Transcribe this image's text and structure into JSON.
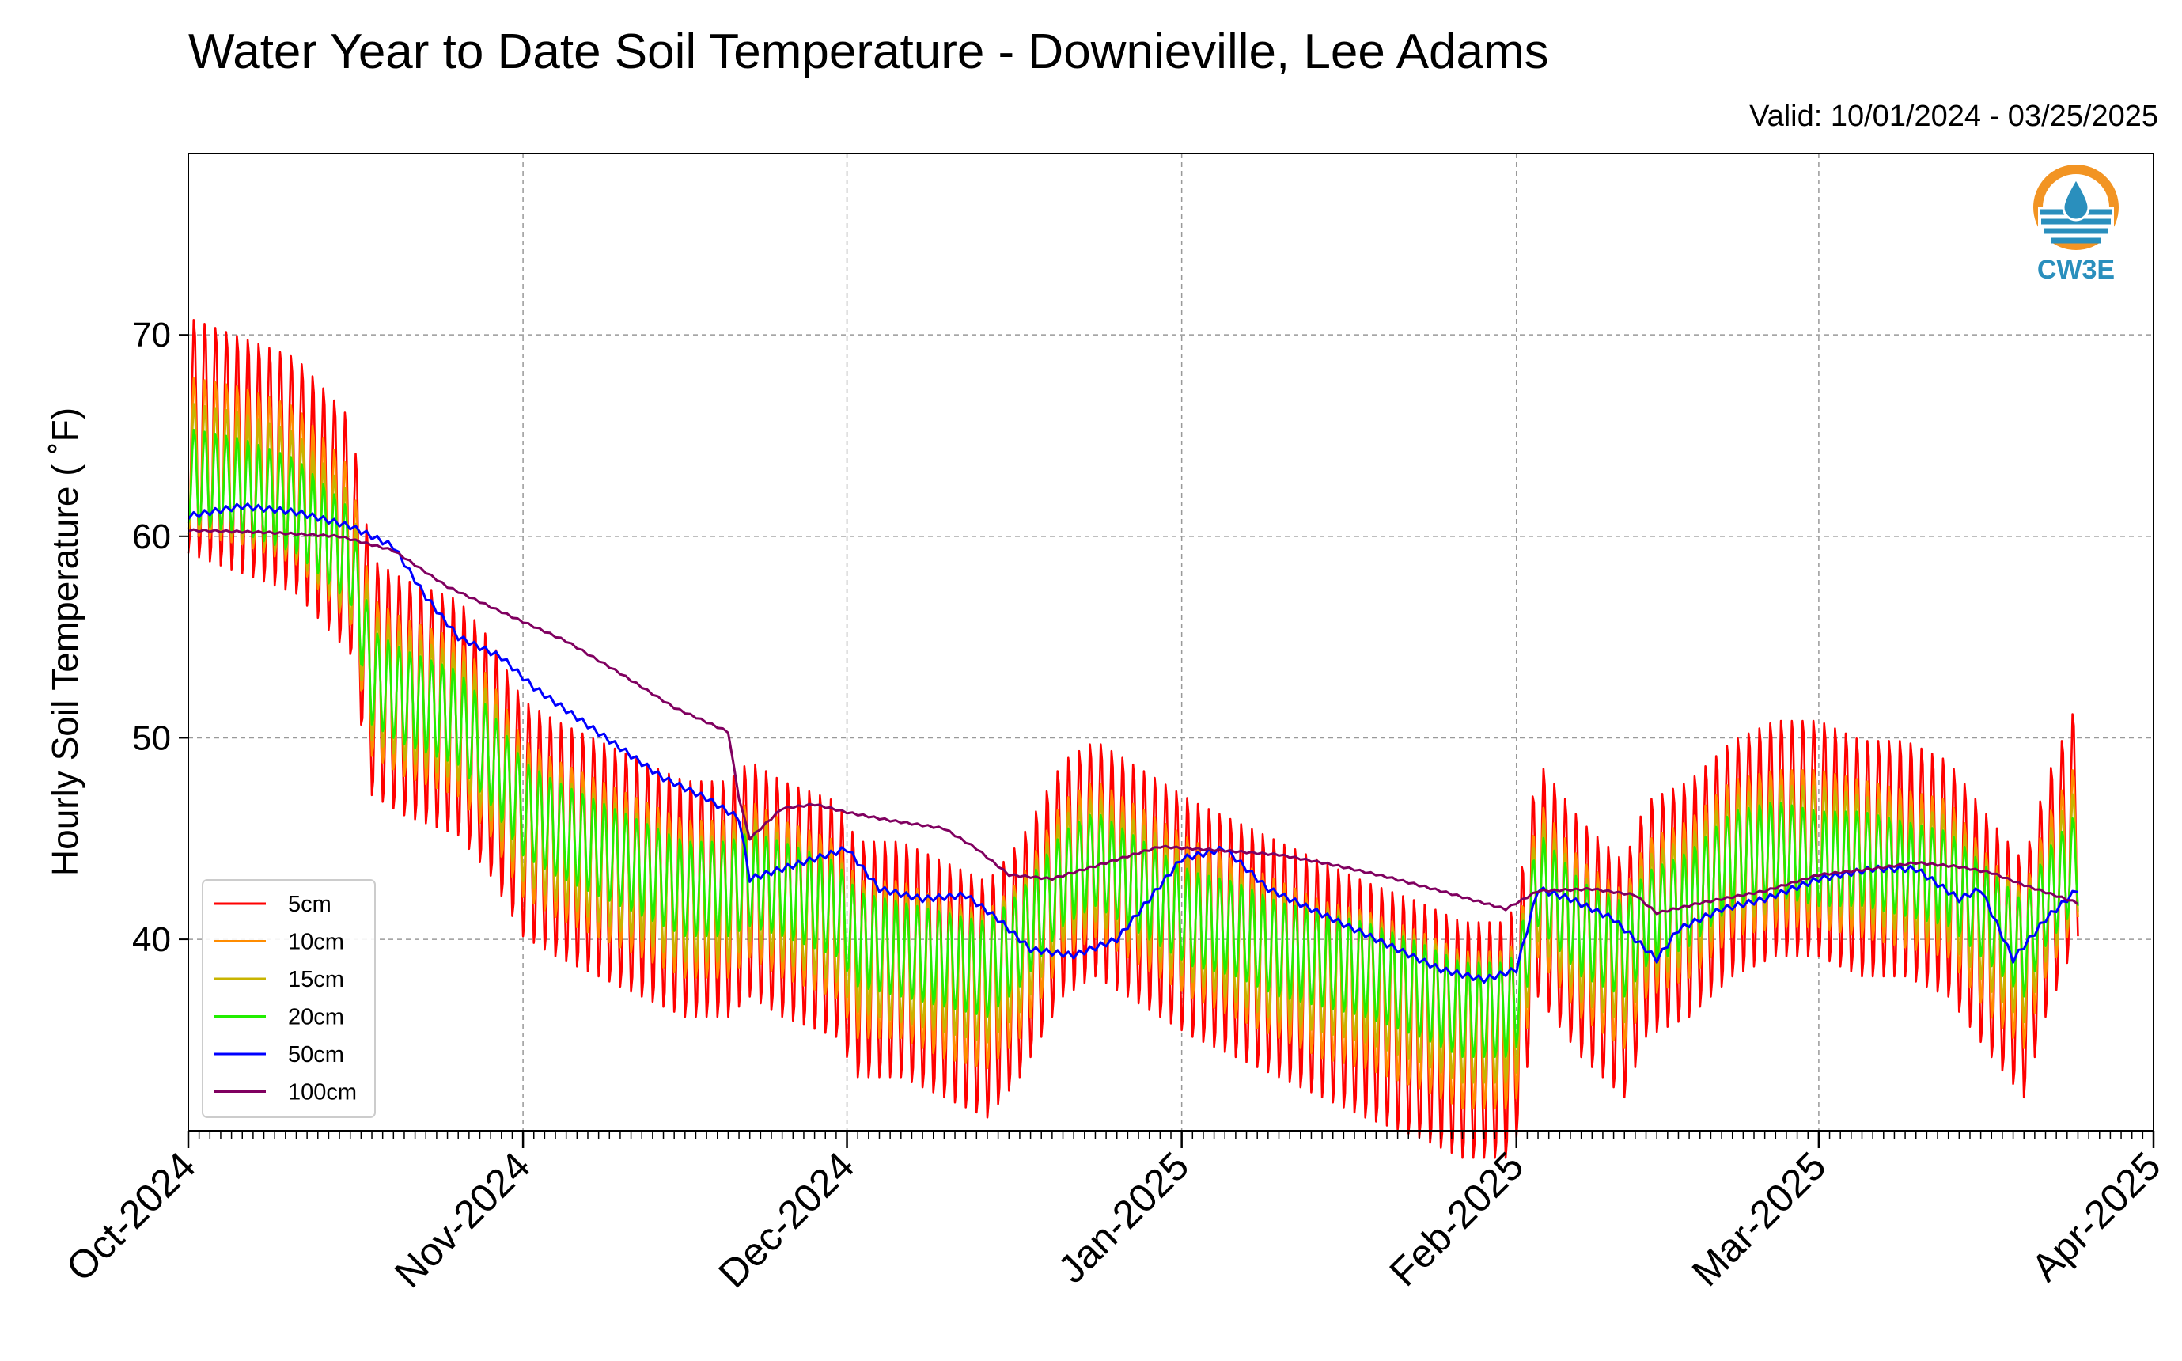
{
  "header": {
    "title": "Water Year to Date Soil Temperature - Downieville, Lee Adams",
    "valid_range": "Valid: 10/01/2024 - 03/25/2025"
  },
  "logo": {
    "text": "CW3E",
    "colors": {
      "orange": "#f29423",
      "blue": "#2a8fbd"
    }
  },
  "chart_data": {
    "type": "line",
    "title": "Water Year to Date Soil Temperature - Downieville, Lee Adams",
    "ylabel": "Hourly Soil Temperature ( $^\\circ$F)",
    "ylabel_display": "Hourly Soil Temperature ( ˚F)",
    "xlabel": "",
    "ylim": [
      30.5,
      79
    ],
    "yticks": [
      40,
      50,
      60,
      70
    ],
    "xlim": [
      "2024-10-01",
      "2025-04-01"
    ],
    "xticks": [
      "Oct-2024",
      "Nov-2024",
      "Dec-2024",
      "Jan-2025",
      "Feb-2025",
      "Mar-2025",
      "Apr-2025"
    ],
    "xtick_dates": [
      "2024-10-01",
      "2024-11-01",
      "2024-12-01",
      "2025-01-01",
      "2025-02-01",
      "2025-03-01",
      "2025-04-01"
    ],
    "grid": true,
    "legend_position": "lower-left",
    "series": [
      {
        "name": "5cm",
        "color": "#ff0000",
        "amp": 6,
        "dates": [
          "2024-10-01",
          "2024-10-06",
          "2024-10-11",
          "2024-10-16",
          "2024-10-18",
          "2024-10-21",
          "2024-10-26",
          "2024-10-29",
          "2024-11-01",
          "2024-11-04",
          "2024-11-08",
          "2024-11-12",
          "2024-11-16",
          "2024-11-20",
          "2024-11-22",
          "2024-11-25",
          "2024-11-30",
          "2024-12-02",
          "2024-12-06",
          "2024-12-10",
          "2024-12-14",
          "2024-12-17",
          "2024-12-21",
          "2024-12-24",
          "2024-12-27",
          "2024-12-30",
          "2025-01-02",
          "2025-01-06",
          "2025-01-10",
          "2025-01-14",
          "2025-01-18",
          "2025-01-23",
          "2025-01-27",
          "2025-01-31",
          "2025-02-01",
          "2025-02-03",
          "2025-02-07",
          "2025-02-11",
          "2025-02-13",
          "2025-02-17",
          "2025-02-21",
          "2025-02-25",
          "2025-03-01",
          "2025-03-05",
          "2025-03-09",
          "2025-03-13",
          "2025-03-17",
          "2025-03-20",
          "2025-03-22",
          "2025-03-25"
        ],
        "values": [
          65,
          64,
          63,
          60,
          53,
          52,
          51,
          49,
          46,
          45,
          44,
          43,
          42,
          42,
          43,
          42,
          41,
          39,
          39,
          38,
          37,
          39,
          43,
          44,
          43,
          42,
          41,
          40,
          39,
          38,
          37,
          36,
          35,
          35,
          36,
          43,
          40,
          38,
          41,
          42,
          44,
          45,
          45,
          44,
          44,
          43,
          40,
          38,
          42,
          46
        ]
      },
      {
        "name": "10cm",
        "color": "#ff8c00",
        "amp": 4,
        "dates": [
          "2024-10-01",
          "2024-10-06",
          "2024-10-11",
          "2024-10-16",
          "2024-10-18",
          "2024-10-21",
          "2024-10-26",
          "2024-10-29",
          "2024-11-01",
          "2024-11-04",
          "2024-11-08",
          "2024-11-12",
          "2024-11-16",
          "2024-11-20",
          "2024-11-22",
          "2024-11-25",
          "2024-11-30",
          "2024-12-02",
          "2024-12-06",
          "2024-12-10",
          "2024-12-14",
          "2024-12-17",
          "2024-12-21",
          "2024-12-24",
          "2024-12-27",
          "2024-12-30",
          "2025-01-02",
          "2025-01-06",
          "2025-01-10",
          "2025-01-14",
          "2025-01-18",
          "2025-01-23",
          "2025-01-27",
          "2025-01-31",
          "2025-02-01",
          "2025-02-03",
          "2025-02-07",
          "2025-02-11",
          "2025-02-13",
          "2025-02-17",
          "2025-02-21",
          "2025-02-25",
          "2025-03-01",
          "2025-03-05",
          "2025-03-09",
          "2025-03-13",
          "2025-03-17",
          "2025-03-20",
          "2025-03-22",
          "2025-03-25"
        ],
        "values": [
          64,
          63.5,
          62.5,
          59.5,
          53,
          52,
          51,
          49,
          46,
          45,
          44,
          43,
          42,
          42,
          43,
          42,
          41,
          39,
          39,
          38,
          37.5,
          39,
          43,
          44,
          43,
          42,
          41,
          40,
          39,
          38,
          37.5,
          36.5,
          35.5,
          35.5,
          36,
          43,
          40,
          38.5,
          41,
          42,
          44,
          44.5,
          44.5,
          44,
          43.5,
          43,
          40,
          38.5,
          42,
          45
        ]
      },
      {
        "name": "15cm",
        "color": "#c8b400",
        "amp": 3.2,
        "dates": [
          "2024-10-01",
          "2024-10-06",
          "2024-10-11",
          "2024-10-16",
          "2024-10-18",
          "2024-10-21",
          "2024-10-26",
          "2024-10-29",
          "2024-11-01",
          "2024-11-04",
          "2024-11-08",
          "2024-11-12",
          "2024-11-16",
          "2024-11-20",
          "2024-11-22",
          "2024-11-25",
          "2024-11-30",
          "2024-12-02",
          "2024-12-06",
          "2024-12-10",
          "2024-12-14",
          "2024-12-17",
          "2024-12-21",
          "2024-12-24",
          "2024-12-27",
          "2024-12-30",
          "2025-01-02",
          "2025-01-06",
          "2025-01-10",
          "2025-01-14",
          "2025-01-18",
          "2025-01-23",
          "2025-01-27",
          "2025-01-31",
          "2025-02-01",
          "2025-02-03",
          "2025-02-07",
          "2025-02-11",
          "2025-02-13",
          "2025-02-17",
          "2025-02-21",
          "2025-02-25",
          "2025-03-01",
          "2025-03-05",
          "2025-03-09",
          "2025-03-13",
          "2025-03-17",
          "2025-03-20",
          "2025-03-22",
          "2025-03-25"
        ],
        "values": [
          63.5,
          63,
          62,
          59,
          53,
          52,
          51,
          49,
          46,
          45,
          44,
          43,
          42,
          42,
          43,
          42,
          41,
          39.5,
          39,
          38.5,
          38,
          39.5,
          43,
          44,
          43,
          42,
          41,
          40,
          39,
          38.5,
          38,
          37,
          36,
          36,
          36.5,
          43,
          40,
          39,
          41,
          42,
          44,
          44.5,
          44.5,
          44,
          43.5,
          43,
          40.5,
          39,
          42,
          44.5
        ]
      },
      {
        "name": "20cm",
        "color": "#22ee00",
        "amp": 2.4,
        "dates": [
          "2024-10-01",
          "2024-10-06",
          "2024-10-11",
          "2024-10-16",
          "2024-10-18",
          "2024-10-21",
          "2024-10-26",
          "2024-10-29",
          "2024-11-01",
          "2024-11-04",
          "2024-11-08",
          "2024-11-12",
          "2024-11-16",
          "2024-11-20",
          "2024-11-22",
          "2024-11-25",
          "2024-11-30",
          "2024-12-02",
          "2024-12-06",
          "2024-12-10",
          "2024-12-14",
          "2024-12-17",
          "2024-12-21",
          "2024-12-24",
          "2024-12-27",
          "2024-12-30",
          "2025-01-02",
          "2025-01-06",
          "2025-01-10",
          "2025-01-14",
          "2025-01-18",
          "2025-01-23",
          "2025-01-27",
          "2025-01-31",
          "2025-02-01",
          "2025-02-03",
          "2025-02-07",
          "2025-02-11",
          "2025-02-13",
          "2025-02-17",
          "2025-02-21",
          "2025-02-25",
          "2025-03-01",
          "2025-03-05",
          "2025-03-09",
          "2025-03-13",
          "2025-03-17",
          "2025-03-20",
          "2025-03-22",
          "2025-03-25"
        ],
        "values": [
          63,
          62.5,
          61.5,
          59,
          53,
          52,
          51,
          49,
          46.5,
          45.5,
          44.5,
          43.5,
          42.5,
          42.5,
          43,
          42.5,
          41.5,
          40,
          39.5,
          39,
          38.5,
          40,
          43,
          44,
          43,
          42,
          41,
          40.5,
          39.5,
          39,
          38.5,
          37.5,
          36.5,
          36.5,
          37,
          43,
          40.5,
          39.5,
          41,
          42,
          44,
          44.5,
          44,
          44,
          43.5,
          43,
          41,
          39.5,
          42,
          44
        ]
      },
      {
        "name": "50cm",
        "color": "#0000ff",
        "amp": 0.15,
        "dates": [
          "2024-10-01",
          "2024-10-06",
          "2024-10-11",
          "2024-10-16",
          "2024-10-20",
          "2024-10-23",
          "2024-10-26",
          "2024-10-30",
          "2024-11-02",
          "2024-11-06",
          "2024-11-10",
          "2024-11-14",
          "2024-11-18",
          "2024-11-21",
          "2024-11-22",
          "2024-11-25",
          "2024-11-28",
          "2024-12-01",
          "2024-12-04",
          "2024-12-08",
          "2024-12-12",
          "2024-12-15",
          "2024-12-18",
          "2024-12-22",
          "2024-12-26",
          "2024-12-29",
          "2025-01-01",
          "2025-01-05",
          "2025-01-09",
          "2025-01-13",
          "2025-01-17",
          "2025-01-21",
          "2025-01-25",
          "2025-01-29",
          "2025-02-01",
          "2025-02-03",
          "2025-02-06",
          "2025-02-10",
          "2025-02-14",
          "2025-02-16",
          "2025-02-20",
          "2025-02-24",
          "2025-03-01",
          "2025-03-06",
          "2025-03-10",
          "2025-03-14",
          "2025-03-16",
          "2025-03-19",
          "2025-03-22",
          "2025-03-25"
        ],
        "values": [
          61,
          61.5,
          61.2,
          60.5,
          59.5,
          57,
          55,
          54,
          52.5,
          51,
          49.5,
          48,
          47,
          46,
          43,
          43.5,
          44,
          44.5,
          42.5,
          42,
          42.2,
          41,
          39.5,
          39.2,
          40,
          42,
          44,
          44.5,
          42.5,
          41.5,
          40.5,
          39.5,
          38.5,
          38,
          38.5,
          42.5,
          42,
          41,
          39,
          40.5,
          41.5,
          42,
          43,
          43.5,
          43.5,
          42,
          42.5,
          39,
          41,
          42.5
        ]
      },
      {
        "name": "100cm",
        "color": "#800060",
        "amp": 0.05,
        "dates": [
          "2024-10-01",
          "2024-10-08",
          "2024-10-15",
          "2024-10-20",
          "2024-10-25",
          "2024-10-31",
          "2024-11-05",
          "2024-11-10",
          "2024-11-15",
          "2024-11-20",
          "2024-11-21",
          "2024-11-22",
          "2024-11-25",
          "2024-11-28",
          "2024-12-01",
          "2024-12-05",
          "2024-12-10",
          "2024-12-13",
          "2024-12-16",
          "2024-12-20",
          "2024-12-25",
          "2024-12-30",
          "2025-01-05",
          "2025-01-10",
          "2025-01-15",
          "2025-01-20",
          "2025-01-25",
          "2025-01-31",
          "2025-02-03",
          "2025-02-08",
          "2025-02-12",
          "2025-02-14",
          "2025-02-18",
          "2025-02-24",
          "2025-03-01",
          "2025-03-06",
          "2025-03-10",
          "2025-03-14",
          "2025-03-17",
          "2025-03-20",
          "2025-03-25"
        ],
        "values": [
          60.3,
          60.2,
          60,
          59.3,
          57.5,
          56,
          54.8,
          53.2,
          51.5,
          50.3,
          47,
          45,
          46.5,
          46.7,
          46.3,
          45.9,
          45.5,
          44.5,
          43.2,
          43,
          43.8,
          44.6,
          44.4,
          44.2,
          43.7,
          43.1,
          42.4,
          41.5,
          42.4,
          42.5,
          42.2,
          41.3,
          41.8,
          42.4,
          43.2,
          43.5,
          43.8,
          43.6,
          43.3,
          42.7,
          41.8
        ]
      }
    ]
  }
}
